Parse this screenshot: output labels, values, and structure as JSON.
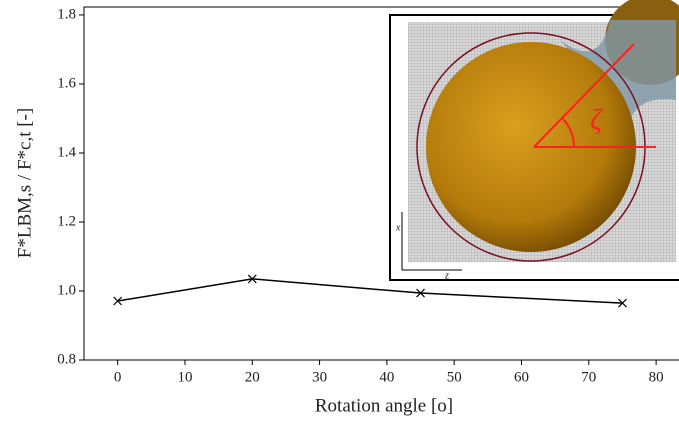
{
  "chart_data": {
    "type": "line",
    "xlabel": "Rotation angle [o]",
    "ylabel": "F*LBM,s / F*c,t [-]",
    "x": [
      0,
      20,
      45,
      75
    ],
    "series": [
      {
        "values": [
          0.971,
          1.035,
          0.994,
          0.965
        ],
        "color": "#000000"
      }
    ],
    "xlim": [
      -5,
      83.4
    ],
    "xticks": [
      0,
      10,
      20,
      30,
      40,
      50,
      60,
      70,
      80
    ],
    "ylim": [
      0.8,
      1.823
    ],
    "yticks": [
      {
        "value": 0.8,
        "label": "0.8"
      },
      {
        "value": 1,
        "label": "1.0"
      },
      1.2,
      1.4,
      1.6,
      1.8
    ],
    "annotations": [
      "ζ",
      "x",
      "z"
    ]
  }
}
